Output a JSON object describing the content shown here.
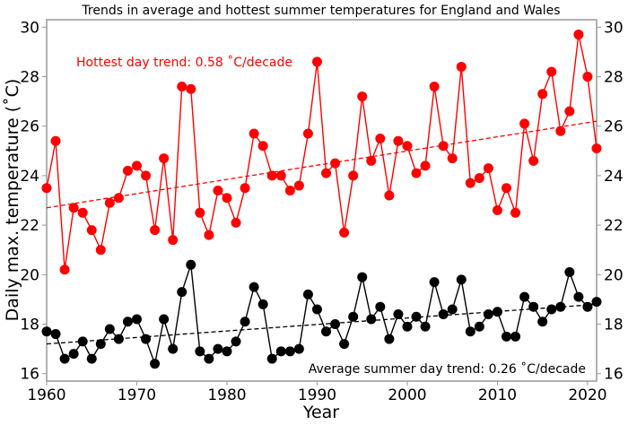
{
  "chart_data": {
    "type": "line",
    "title": "Trends in average and hottest summer temperatures for England and Wales",
    "xlabel": "Year",
    "ylabel": "Daily max. temperature (˚C)",
    "xlim": [
      1960,
      2021
    ],
    "ylim": [
      15.7,
      30.3
    ],
    "xticks": [
      1960,
      1970,
      1980,
      1990,
      2000,
      2010,
      2020
    ],
    "yticks": [
      16,
      18,
      20,
      22,
      24,
      26,
      28,
      30
    ],
    "grid": false,
    "right_axis_labels": true,
    "x": [
      1960,
      1961,
      1962,
      1963,
      1964,
      1965,
      1966,
      1967,
      1968,
      1969,
      1970,
      1971,
      1972,
      1973,
      1974,
      1975,
      1976,
      1977,
      1978,
      1979,
      1980,
      1981,
      1982,
      1983,
      1984,
      1985,
      1986,
      1987,
      1988,
      1989,
      1990,
      1991,
      1992,
      1993,
      1994,
      1995,
      1996,
      1997,
      1998,
      1999,
      2000,
      2001,
      2002,
      2003,
      2004,
      2005,
      2006,
      2007,
      2008,
      2009,
      2010,
      2011,
      2012,
      2013,
      2014,
      2015,
      2016,
      2017,
      2018,
      2019,
      2020,
      2021
    ],
    "series": [
      {
        "color": "#ff0000",
        "values": [
          23.5,
          25.4,
          20.2,
          22.7,
          22.5,
          21.8,
          21.0,
          22.9,
          23.1,
          24.2,
          24.4,
          24.0,
          21.8,
          24.7,
          21.4,
          27.6,
          27.5,
          22.5,
          21.6,
          23.4,
          23.1,
          22.1,
          23.5,
          25.7,
          25.2,
          24.0,
          24.0,
          23.4,
          23.6,
          25.7,
          28.6,
          24.1,
          24.5,
          21.7,
          24.0,
          27.2,
          24.6,
          25.5,
          23.2,
          25.4,
          25.2,
          24.1,
          24.4,
          27.6,
          25.2,
          24.7,
          28.4,
          23.7,
          23.9,
          24.3,
          22.6,
          23.5,
          22.5,
          26.1,
          24.6,
          27.3,
          28.2,
          25.8,
          26.6,
          29.7,
          28.0,
          25.1
        ],
        "trend": {
          "label": "Hottest day trend: 0.58 ˚C/decade",
          "start": 22.7,
          "end": 26.2
        }
      },
      {
        "color": "#000000",
        "values": [
          17.7,
          17.6,
          16.6,
          16.8,
          17.3,
          16.6,
          17.2,
          17.8,
          17.4,
          18.1,
          18.2,
          17.4,
          16.4,
          18.2,
          17.0,
          19.3,
          20.4,
          16.9,
          16.6,
          17.0,
          16.9,
          17.3,
          18.1,
          19.5,
          18.8,
          16.6,
          16.9,
          16.9,
          17.0,
          19.2,
          18.6,
          17.7,
          18.0,
          17.2,
          18.3,
          19.9,
          18.2,
          18.7,
          17.4,
          18.4,
          17.9,
          18.3,
          17.9,
          19.7,
          18.4,
          18.6,
          19.8,
          17.7,
          17.9,
          18.4,
          18.5,
          17.5,
          17.5,
          19.1,
          18.7,
          18.1,
          18.6,
          18.7,
          20.1,
          19.1,
          18.7,
          18.9
        ],
        "trend": {
          "label": "Average summer day trend: 0.26 ˚C/decade",
          "start": 17.2,
          "end": 18.8
        }
      }
    ]
  }
}
